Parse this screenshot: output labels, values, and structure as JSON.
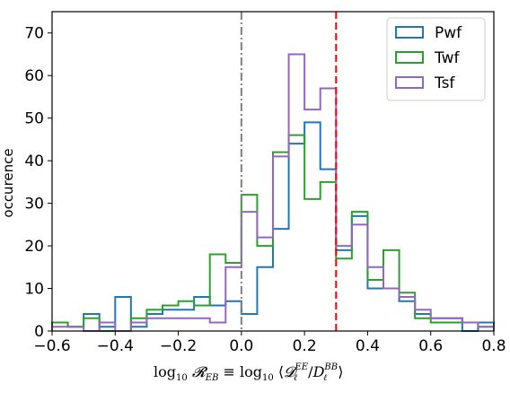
{
  "chart_data": {
    "type": "histogram",
    "xlabel": "log10 𝓡EB ≡ log10 ⟨𝓓ℓEE/DℓBB⟩",
    "xlabel_parts": {
      "log1": "log",
      "sub10a": "10",
      "R": "𝓡",
      "subEB": "EB",
      "equiv": "≡",
      "log2": "log",
      "sub10b": "10",
      "lang": "⟨",
      "D": "𝓓",
      "subL1": "ℓ",
      "supEE": "EE",
      "slash": "/",
      "D2": "D",
      "subL2": "ℓ",
      "supBB": "BB",
      "rang": "⟩"
    },
    "ylabel": "occurence",
    "xlim": [
      -0.6,
      0.8
    ],
    "ylim": [
      0,
      75
    ],
    "xticks": [
      -0.6,
      -0.4,
      -0.2,
      0.0,
      0.2,
      0.4,
      0.6,
      0.8
    ],
    "xtick_labels": [
      "−0.6",
      "−0.4",
      "−0.2",
      "0.0",
      "0.2",
      "0.4",
      "0.6",
      "0.8"
    ],
    "yticks": [
      0,
      10,
      20,
      30,
      40,
      50,
      60,
      70
    ],
    "ytick_labels": [
      "0",
      "10",
      "20",
      "30",
      "40",
      "50",
      "60",
      "70"
    ],
    "grid": false,
    "legend_position": "top-right",
    "bin_edges": [
      -0.6,
      -0.55,
      -0.5,
      -0.45,
      -0.4,
      -0.35,
      -0.3,
      -0.25,
      -0.2,
      -0.15,
      -0.1,
      -0.05,
      0.0,
      0.05,
      0.1,
      0.15,
      0.2,
      0.25,
      0.3,
      0.35,
      0.4,
      0.45,
      0.5,
      0.55,
      0.6,
      0.65,
      0.7,
      0.75,
      0.8
    ],
    "series": [
      {
        "name": "Pwf",
        "color": "#1f77b4",
        "values": [
          2,
          1,
          4,
          1,
          8,
          1,
          4,
          5,
          5,
          8,
          6,
          7,
          4,
          15,
          24,
          44,
          49,
          38,
          19,
          27,
          10,
          10,
          7,
          4,
          3,
          3,
          0,
          2
        ]
      },
      {
        "name": "Twf",
        "color": "#2ca02c",
        "values": [
          2,
          1,
          3,
          0,
          0,
          3,
          5,
          6,
          7,
          6,
          18,
          16,
          32,
          20,
          42,
          46,
          31,
          35,
          17,
          28,
          12,
          19,
          9,
          3,
          2,
          2,
          2,
          1
        ]
      },
      {
        "name": "Tsf",
        "color": "#9467bd",
        "values": [
          1,
          1,
          0,
          2,
          0,
          2,
          3,
          3,
          3,
          3,
          2,
          15,
          28,
          22,
          41,
          65,
          52,
          57,
          20,
          25,
          15,
          10,
          8,
          5,
          3,
          3,
          2,
          1
        ]
      }
    ],
    "vlines": [
      {
        "x": 0.0,
        "color": "#808080",
        "style": "dashdot"
      },
      {
        "x": 0.3,
        "color": "#ff0000",
        "style": "dashed"
      }
    ]
  }
}
